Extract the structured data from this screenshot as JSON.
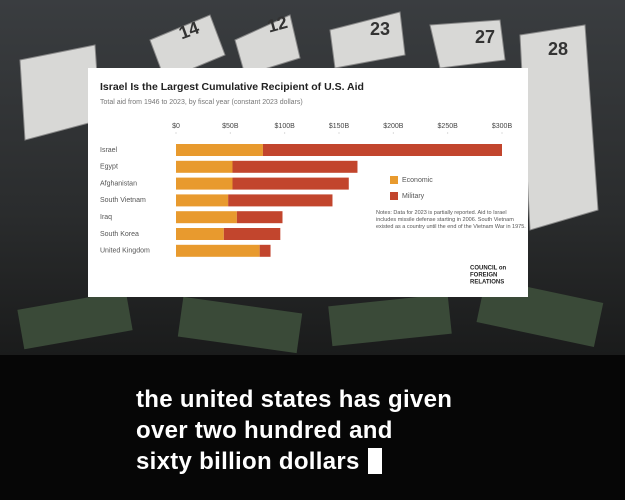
{
  "chart_data": {
    "type": "stacked-barh",
    "title": "Israel Is the Largest Cumulative Recipient of U.S. Aid",
    "subtitle": "Total aid from 1946 to 2023, by fiscal year (constant 2023 dollars)",
    "categories": [
      "Israel",
      "Egypt",
      "Afghanistan",
      "South Vietnam",
      "Iraq",
      "South Korea",
      "United Kingdom"
    ],
    "series": [
      {
        "name": "Economic",
        "color": "#e89a2e",
        "values": [
          80,
          52,
          52,
          48,
          56,
          44,
          77
        ]
      },
      {
        "name": "Military",
        "color": "#c2452d",
        "values": [
          220,
          115,
          107,
          96,
          42,
          52,
          10
        ]
      }
    ],
    "xlim": [
      0,
      300
    ],
    "xticks": [
      {
        "value": 0,
        "label": "$0"
      },
      {
        "value": 50,
        "label": "$50B"
      },
      {
        "value": 100,
        "label": "$100B"
      },
      {
        "value": 150,
        "label": "$150B"
      },
      {
        "value": 200,
        "label": "$200B"
      },
      {
        "value": 250,
        "label": "$250B"
      },
      {
        "value": 300,
        "label": "$300B"
      }
    ],
    "notes": "Notes: Data for 2023 is partially reported. Aid to Israel includes missile defense starting in 2006. South Vietnam existed as a country until the end of the Vietnam War in 1975.",
    "logo": [
      "COUNCIL on",
      "FOREIGN",
      "RELATIONS"
    ]
  },
  "background": {
    "calendar_dates": [
      "14",
      "12",
      "23",
      "27",
      "28"
    ]
  },
  "caption": [
    "the united states has given",
    "over two hundred and",
    "sixty billion dollars"
  ]
}
